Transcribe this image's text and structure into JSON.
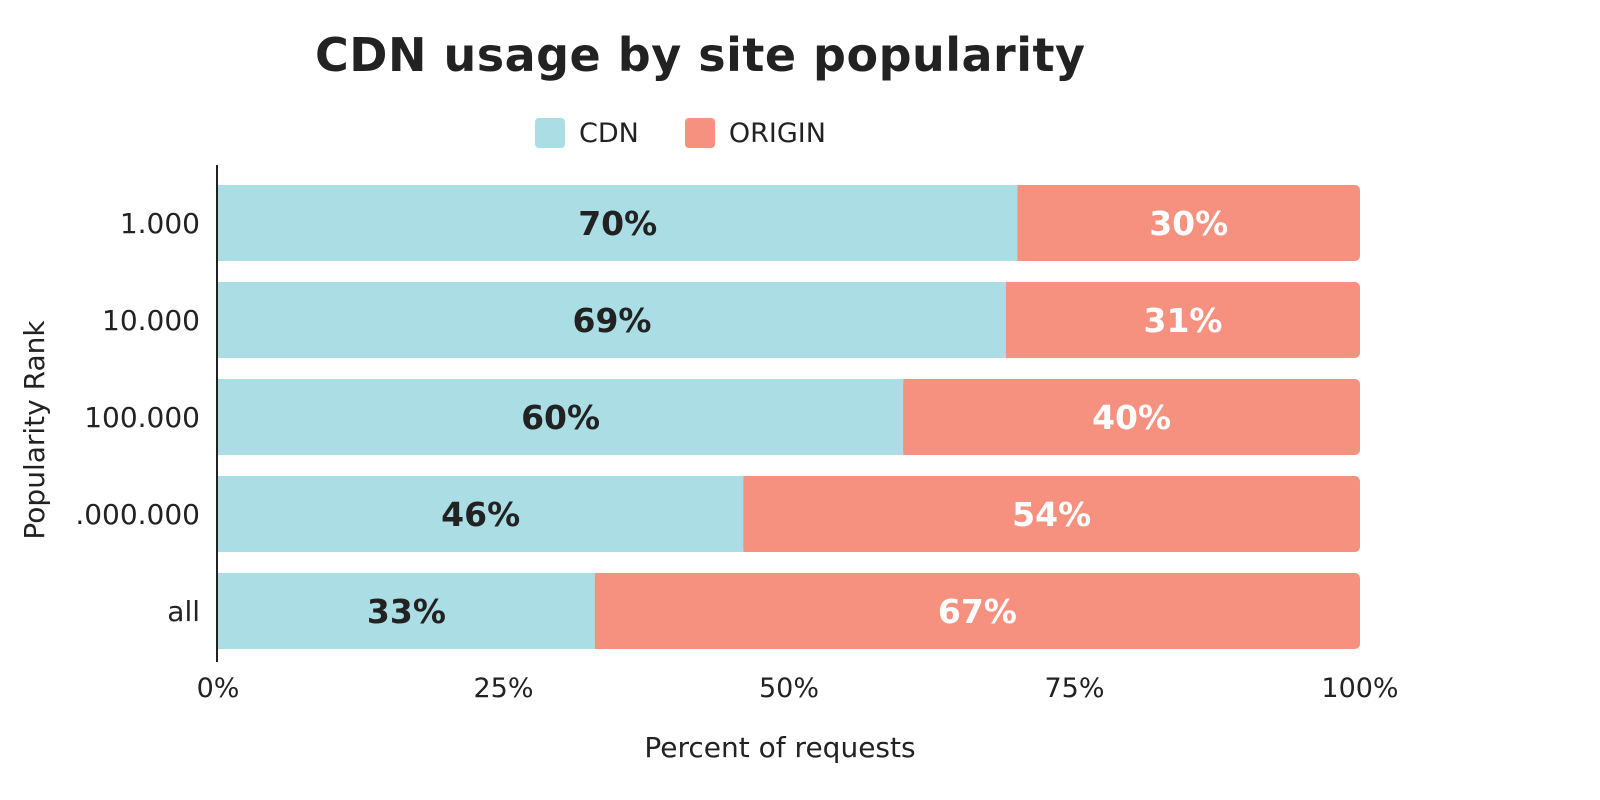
{
  "chart_data": {
    "type": "bar",
    "orientation": "horizontal",
    "stacked": true,
    "title": "CDN usage by site popularity",
    "xlabel": "Percent of requests",
    "ylabel": "Popularity Rank",
    "categories": [
      "1.000",
      "10.000",
      "100.000",
      ".000.000",
      "all"
    ],
    "series": [
      {
        "name": "CDN",
        "color": "#aadde4",
        "values": [
          70,
          69,
          60,
          46,
          33
        ],
        "labels": [
          "70%",
          "69%",
          "60%",
          "46%",
          "33%"
        ],
        "label_color": "#222222"
      },
      {
        "name": "ORIGIN",
        "color": "#f5917e",
        "values": [
          30,
          31,
          40,
          54,
          67
        ],
        "labels": [
          "30%",
          "31%",
          "40%",
          "54%",
          "67%"
        ],
        "label_color": "#ffffff"
      }
    ],
    "xlim": [
      0,
      100
    ],
    "xticks": [
      "0%",
      "25%",
      "50%",
      "75%",
      "100%"
    ],
    "grid": false,
    "legend": "top-center"
  }
}
